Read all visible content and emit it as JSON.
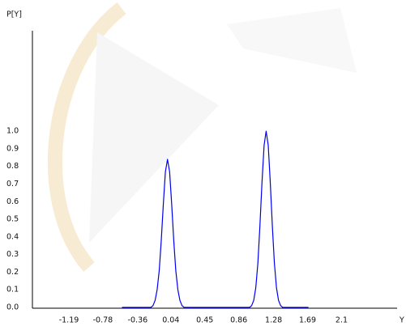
{
  "chart_data": {
    "type": "line",
    "y_label": "P[Y]",
    "x_label": "Y",
    "x": [
      -0.55,
      -0.4,
      -0.3,
      -0.2,
      -0.175,
      -0.15,
      -0.125,
      -0.1,
      -0.075,
      -0.05,
      -0.025,
      0,
      0.025,
      0.05,
      0.075,
      0.1,
      0.125,
      0.15,
      0.175,
      0.2,
      0.3,
      0.5,
      0.7,
      0.9,
      0.99,
      1.015,
      1.04,
      1.065,
      1.09,
      1.115,
      1.14,
      1.165,
      1.19,
      1.215,
      1.24,
      1.265,
      1.29,
      1.315,
      1.34,
      1.365,
      1.39,
      1.5,
      1.7
    ],
    "values": [
      0,
      0,
      0,
      0,
      0.01,
      0.04,
      0.1,
      0.21,
      0.38,
      0.59,
      0.77,
      0.84,
      0.77,
      0.59,
      0.38,
      0.21,
      0.1,
      0.04,
      0.01,
      0,
      0,
      0,
      0,
      0,
      0,
      0.01,
      0.04,
      0.11,
      0.25,
      0.46,
      0.71,
      0.92,
      1,
      0.92,
      0.71,
      0.46,
      0.25,
      0.11,
      0.04,
      0.01,
      0,
      0,
      0
    ],
    "color": "#0000ee",
    "xlim": [
      -1.63,
      2.77
    ],
    "xticks": [
      -1.19,
      -0.78,
      -0.36,
      0.04,
      0.45,
      0.86,
      1.28,
      1.69,
      2.1
    ],
    "ylim": [
      0,
      1.57
    ],
    "yticks": [
      {
        "value": 0,
        "label": "0.0"
      },
      0.1,
      0.2,
      0.3,
      0.4,
      0.5,
      0.6,
      0.7,
      0.8,
      0.9,
      {
        "value": 1,
        "label": "1.0"
      }
    ],
    "grid": false
  }
}
